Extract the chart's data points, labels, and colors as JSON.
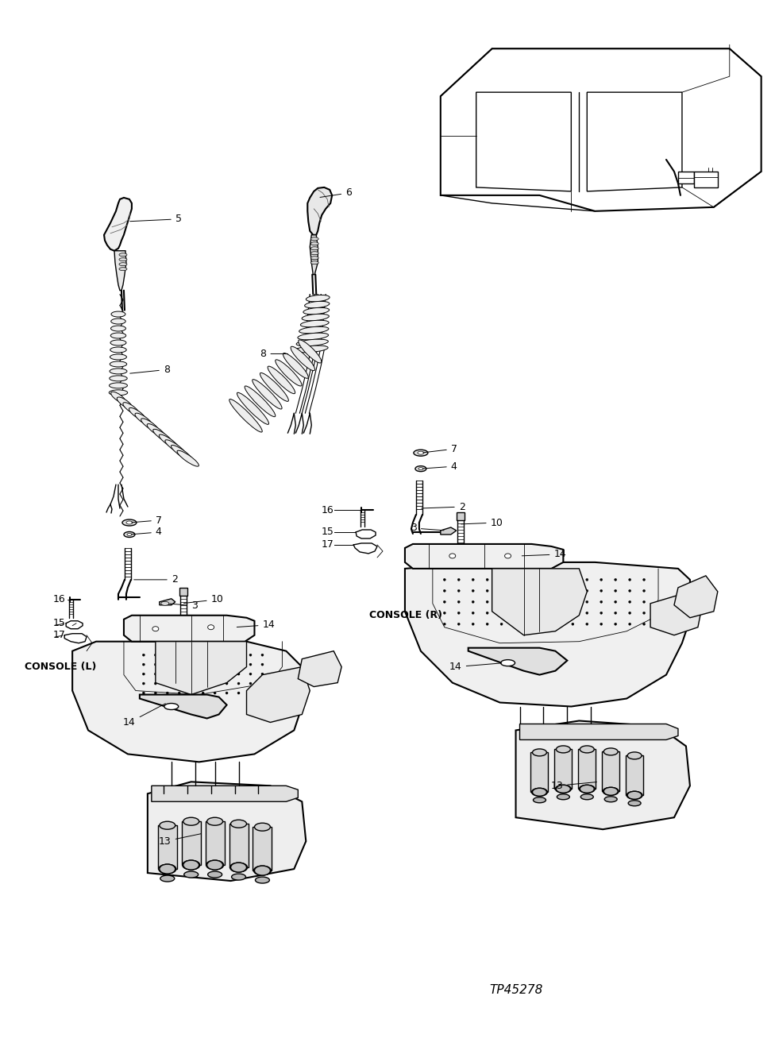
{
  "part_number": "TP45278",
  "background_color": "#ffffff",
  "figsize": [
    9.76,
    13.22
  ],
  "dpi": 100,
  "label_fs": 9,
  "title_fs": 10
}
